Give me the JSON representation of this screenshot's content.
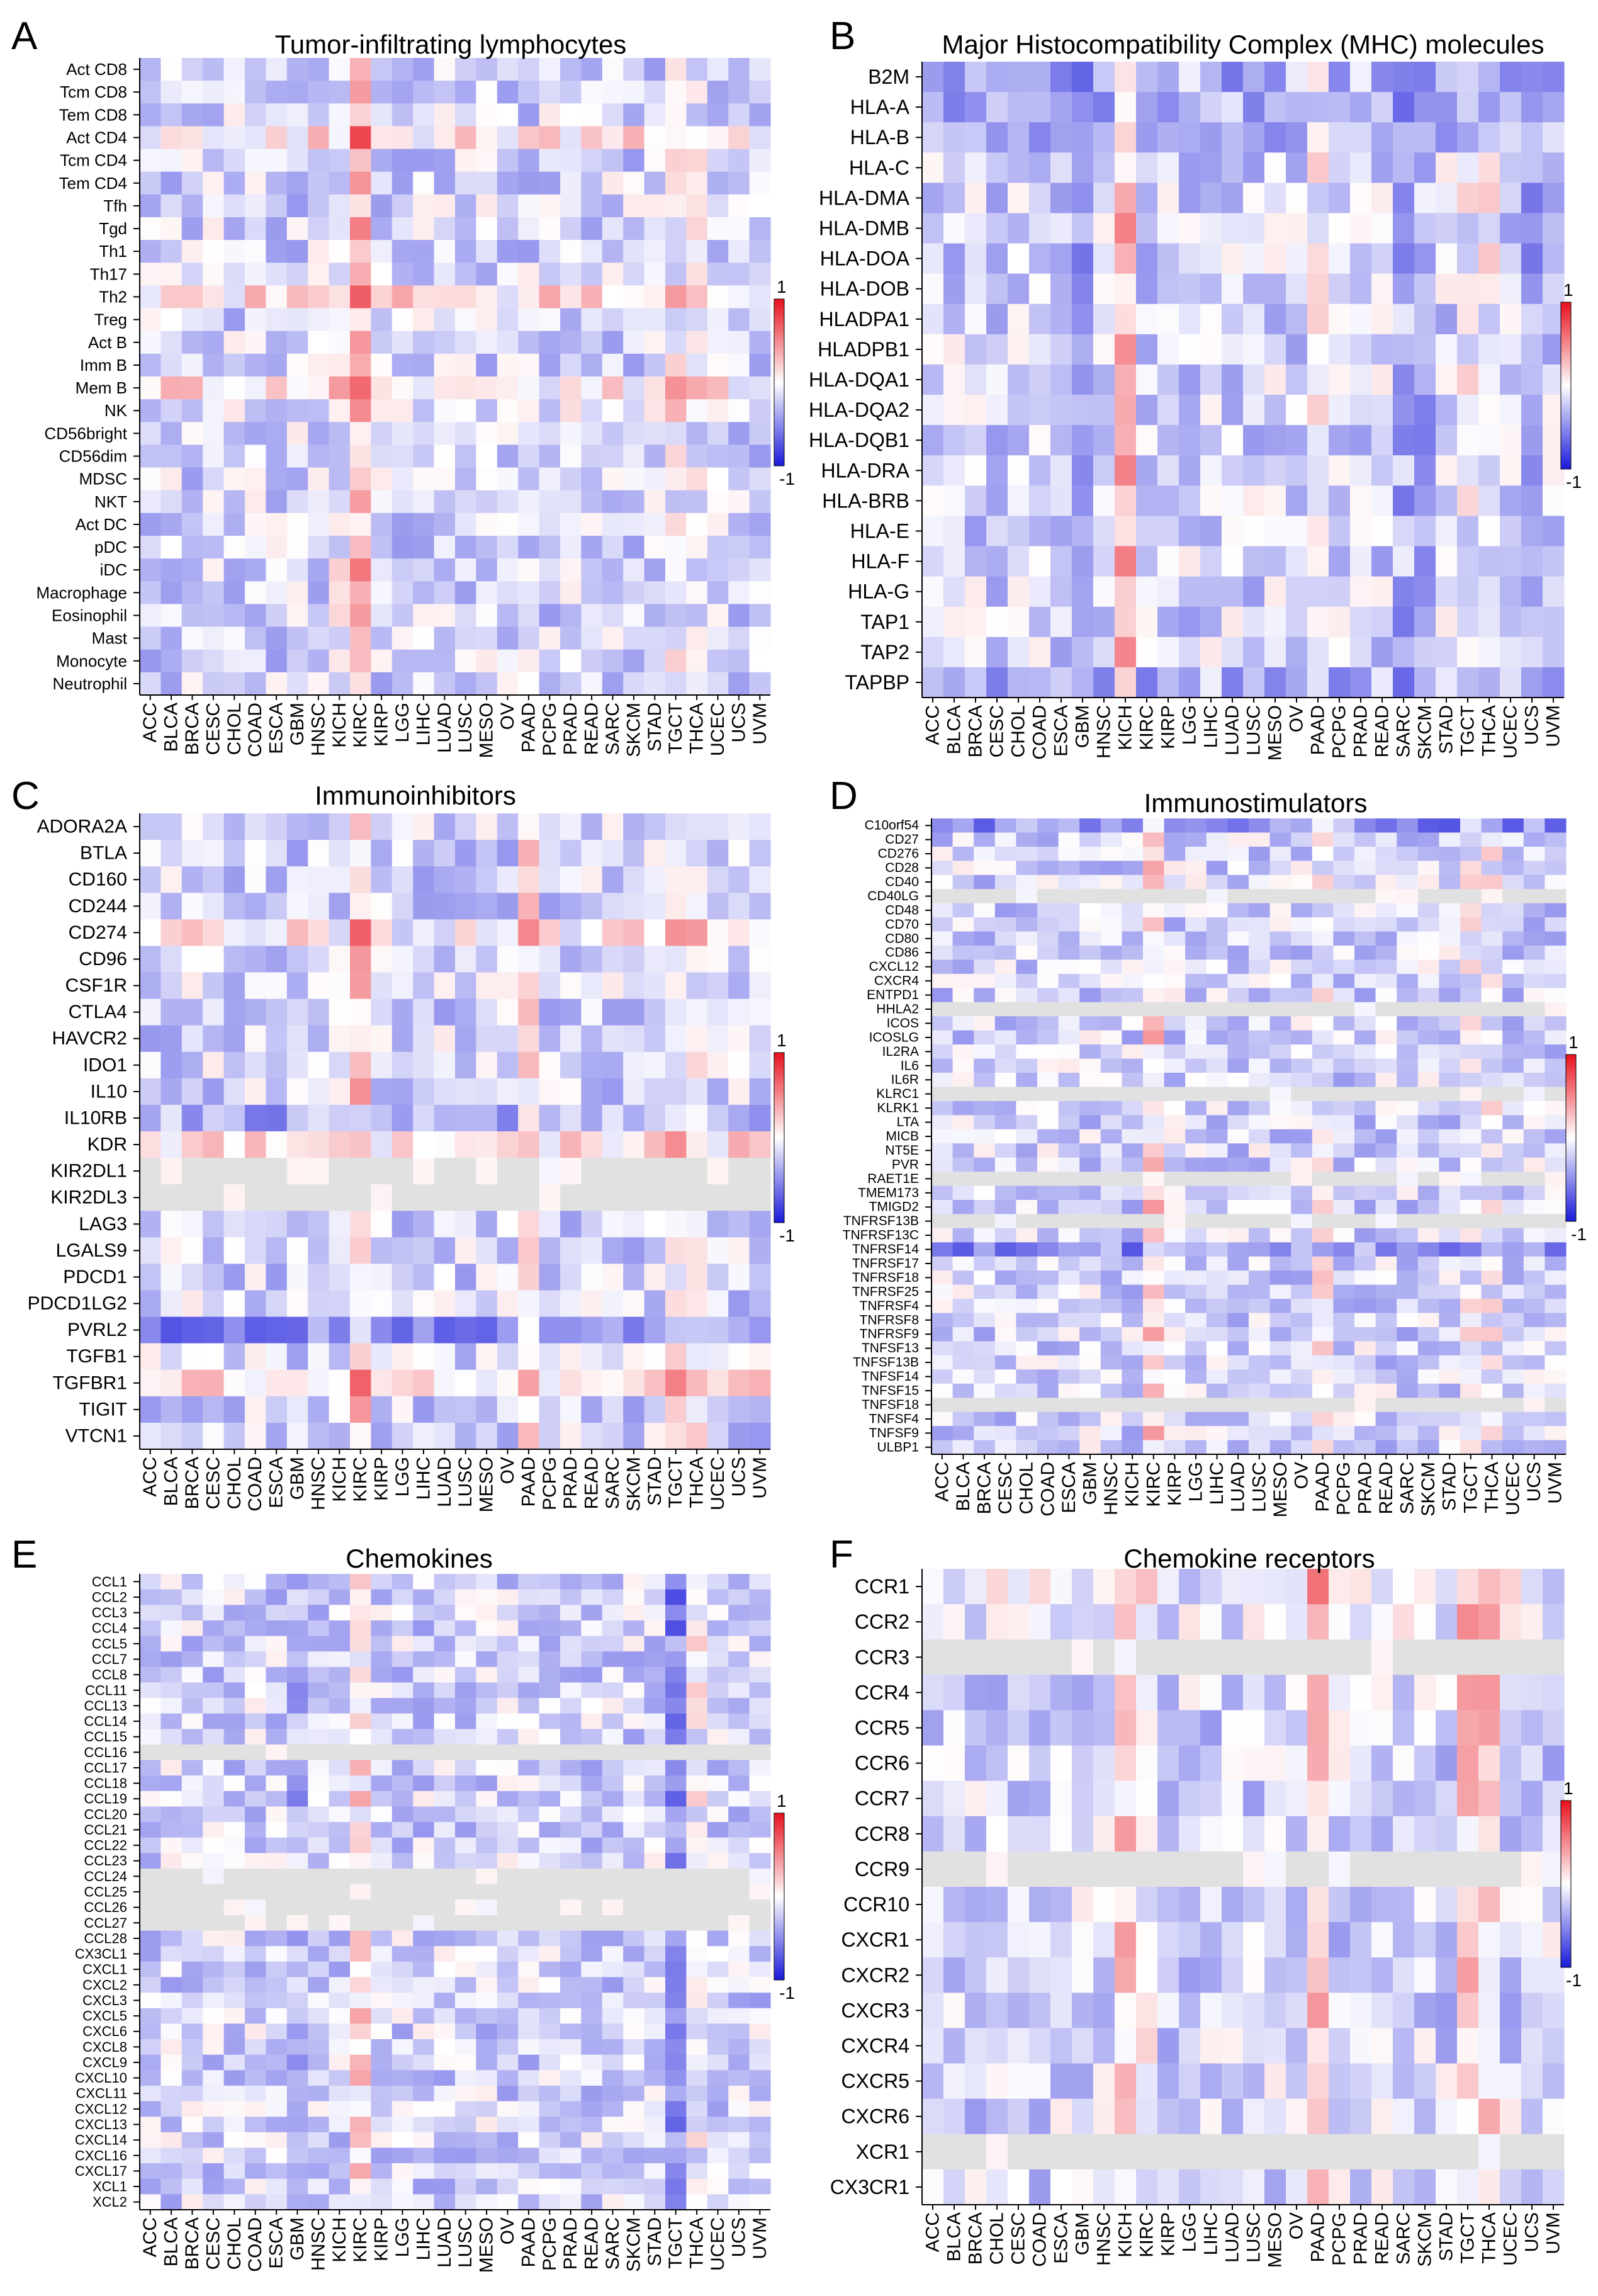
{
  "colors": {
    "positive": "#e8111d",
    "negative": "#1a1adb",
    "neutral": "#ffffff",
    "na": "#e1e1e1",
    "red_label": "#e0231d",
    "blue_label": "#4f80c6"
  },
  "chart_data": [
    {
      "panel": "A",
      "type": "heatmap",
      "title": "Tumor-infiltrating lymphocytes",
      "rows": [
        "Act CD8",
        "Tcm CD8",
        "Tem CD8",
        "Act CD4",
        "Tcm CD4",
        "Tem CD4",
        "Tfh",
        "Tgd",
        "Th1",
        "Th17",
        "Th2",
        "Treg",
        "Act B",
        "Imm B",
        "Mem B",
        "NK",
        "CD56bright",
        "CD56dim",
        "MDSC",
        "NKT",
        "Act DC",
        "pDC",
        "iDC",
        "Macrophage",
        "Eosinophil",
        "Mast",
        "Monocyte",
        "Neutrophil"
      ],
      "row_colors": {
        "Act CD4": "red",
        "Th1": "blue",
        "Th17": "blue",
        "Th2": "red",
        "Mem B": "red"
      },
      "columns": [
        "ACC",
        "BLCA",
        "BRCA",
        "CESC",
        "CHOL",
        "COAD",
        "ESCA",
        "GBM",
        "HNSC",
        "KICH",
        "KIRC",
        "KIRP",
        "LGG",
        "LIHC",
        "LUAD",
        "LUSC",
        "MESO",
        "OV",
        "PAAD",
        "PCPG",
        "PRAD",
        "READ",
        "SARC",
        "SKCM",
        "STAD",
        "TGCT",
        "THCA",
        "UCEC",
        "UCS",
        "UVM"
      ],
      "color_scale": {
        "min": -1,
        "max": 1,
        "min_label": "-1",
        "max_label": "1"
      },
      "hot_columns": {
        "KIRC": 0.5,
        "KICH": 0.12,
        "TGCT": 0.15,
        "THCA": 0.1
      },
      "hot_rows": {
        "Act CD4": 0.25,
        "Th2": 0.3,
        "Mem B": 0.25,
        "NK": 0.1
      },
      "gray_rows": []
    },
    {
      "panel": "B",
      "type": "heatmap",
      "title": "Major Histocompatibility Complex (MHC) molecules",
      "rows": [
        "B2M",
        "HLA-A",
        "HLA-B",
        "HLA-C",
        "HLA-DMA",
        "HLA-DMB",
        "HLA-DOA",
        "HLA-DOB",
        "HLADPA1",
        "HLADPB1",
        "HLA-DQA1",
        "HLA-DQA2",
        "HLA-DQB1",
        "HLA-DRA",
        "HLA-BRB",
        "HLA-E",
        "HLA-F",
        "HLA-G",
        "TAP1",
        "TAP2",
        "TAPBP"
      ],
      "row_colors": {},
      "columns": [
        "ACC",
        "BLCA",
        "BRCA",
        "CESC",
        "CHOL",
        "COAD",
        "ESCA",
        "GBM",
        "HNSC",
        "KICH",
        "KIRC",
        "KIRP",
        "LGG",
        "LIHC",
        "LUAD",
        "LUSC",
        "MESO",
        "OV",
        "PAAD",
        "PCPG",
        "PRAD",
        "READ",
        "SARC",
        "SKCM",
        "STAD",
        "TGCT",
        "THCA",
        "UCEC",
        "UCS",
        "UVM"
      ],
      "color_scale": {
        "min": -1,
        "max": 1,
        "min_label": "-1",
        "max_label": "1"
      },
      "hot_columns": {
        "KICH": 0.45,
        "PAAD": 0.2,
        "TGCT": 0.15,
        "THCA": 0.15,
        "GBM": -0.2,
        "SARC": -0.15,
        "SKCM": -0.15,
        "UCS": -0.15
      },
      "hot_rows": {
        "B2M": -0.15,
        "HLA-A": -0.15,
        "HLA-B": -0.15,
        "TAPBP": -0.15
      },
      "gray_rows": []
    },
    {
      "panel": "C",
      "type": "heatmap",
      "title": "Immunoinhibitors",
      "rows": [
        "ADORA2A",
        "BTLA",
        "CD160",
        "CD244",
        "CD274",
        "CD96",
        "CSF1R",
        "CTLA4",
        "HAVCR2",
        "IDO1",
        "IL10",
        "IL10RB",
        "KDR",
        "KIR2DL1",
        "KIR2DL3",
        "LAG3",
        "LGALS9",
        "PDCD1",
        "PDCD1LG2",
        "PVRL2",
        "TGFB1",
        "TGFBR1",
        "TIGIT",
        "VTCN1"
      ],
      "row_colors": {
        "CD274": "red",
        "IL10RB": "blue",
        "KDR": "red",
        "PVRL2": "blue",
        "TGFBR1": "red"
      },
      "columns": [
        "ACC",
        "BLCA",
        "BRCA",
        "CESC",
        "CHOL",
        "COAD",
        "ESCA",
        "GBM",
        "HNSC",
        "KICH",
        "KIRC",
        "KIRP",
        "LGG",
        "LIHC",
        "LUAD",
        "LUSC",
        "MESO",
        "OV",
        "PAAD",
        "PCPG",
        "PRAD",
        "READ",
        "SARC",
        "SKCM",
        "STAD",
        "TGCT",
        "THCA",
        "UCEC",
        "UCS",
        "UVM"
      ],
      "color_scale": {
        "min": -1,
        "max": 1,
        "min_label": "-1",
        "max_label": "1"
      },
      "hot_columns": {
        "KIRC": 0.4,
        "PAAD": 0.25,
        "TGCT": 0.2,
        "THCA": 0.15
      },
      "hot_rows": {
        "CD274": 0.2,
        "KDR": 0.3,
        "TGFBR1": 0.3,
        "PVRL2": -0.3,
        "IL10RB": -0.2
      },
      "gray_rows": [
        "KIR2DL1",
        "KIR2DL3"
      ]
    },
    {
      "panel": "D",
      "type": "heatmap",
      "title": "Immunostimulators",
      "rows": [
        "C10orf54",
        "CD27",
        "CD276",
        "CD28",
        "CD40",
        "CD40LG",
        "CD48",
        "CD70",
        "CD80",
        "CD86",
        "CXCL12",
        "CXCR4",
        "ENTPD1",
        "HHLA2",
        "ICOS",
        "ICOSLG",
        "IL2RA",
        "IL6",
        "IL6R",
        "KLRC1",
        "KLRK1",
        "LTA",
        "MICB",
        "NT5E",
        "PVR",
        "RAET1E",
        "TMEM173",
        "TMIGD2",
        "TNFRSF13B",
        "TNFRSF13C",
        "TNFRSF14",
        "TNFRSF17",
        "TNFRSF18",
        "TNFRSF25",
        "TNFRSF4",
        "TNFRSF8",
        "TNFRSF9",
        "TNFSF13",
        "TNFSF13B",
        "TNFSF14",
        "TNFSF15",
        "TNFSF18",
        "TNFSF4",
        "TNFSF9",
        "ULBP1"
      ],
      "row_colors": {
        "C10orf54": "blue",
        "TNFRSF14": "blue"
      },
      "columns": [
        "ACC",
        "BLCA",
        "BRCA",
        "CESC",
        "CHOL",
        "COAD",
        "ESCA",
        "GBM",
        "HNSC",
        "KICH",
        "KIRC",
        "KIRP",
        "LGG",
        "LIHC",
        "LUAD",
        "LUSC",
        "MESO",
        "OV",
        "PAAD",
        "PCPG",
        "PRAD",
        "READ",
        "SARC",
        "SKCM",
        "STAD",
        "TGCT",
        "THCA",
        "UCEC",
        "UCS",
        "UVM"
      ],
      "color_scale": {
        "min": -1,
        "max": 1,
        "min_label": "-1",
        "max_label": "1"
      },
      "hot_columns": {
        "KIRC": 0.35,
        "PAAD": 0.2,
        "TGCT": 0.15,
        "THCA": 0.15
      },
      "hot_rows": {
        "C10orf54": -0.3,
        "TNFRSF14": -0.3
      },
      "gray_rows": [
        "CD40LG",
        "HHLA2",
        "KLRC1",
        "RAET1E",
        "TNFRSF13B",
        "TNFSF18"
      ]
    },
    {
      "panel": "E",
      "type": "heatmap",
      "title": "Chemokines",
      "rows": [
        "CCL1",
        "CCL2",
        "CCL3",
        "CCL4",
        "CCL5",
        "CCL7",
        "CCL8",
        "CCL11",
        "CCL13",
        "CCL14",
        "CCL15",
        "CCL16",
        "CCL17",
        "CCL18",
        "CCL19",
        "CCL20",
        "CCL21",
        "CCL22",
        "CCL23",
        "CCL24",
        "CCL25",
        "CCL26",
        "CCL27",
        "CCL28",
        "CX3CL1",
        "CXCL1",
        "CXCL2",
        "CXCL3",
        "CXCL5",
        "CXCL6",
        "CXCL8",
        "CXCL9",
        "CXCL10",
        "CXCL11",
        "CXCL12",
        "CXCL13",
        "CXCL14",
        "CXCL16",
        "CXCL17",
        "XCL1",
        "XCL2"
      ],
      "row_colors": {},
      "columns": [
        "ACC",
        "BLCA",
        "BRCA",
        "CESC",
        "CHOL",
        "COAD",
        "ESCA",
        "GBM",
        "HNSC",
        "KICH",
        "KIRC",
        "KIRP",
        "LGG",
        "LIHC",
        "LUAD",
        "LUSC",
        "MESO",
        "OV",
        "PAAD",
        "PCPG",
        "PRAD",
        "READ",
        "SARC",
        "SKCM",
        "STAD",
        "TGCT",
        "THCA",
        "UCEC",
        "UCS",
        "UVM"
      ],
      "color_scale": {
        "min": -1,
        "max": 1,
        "min_label": "-1",
        "max_label": "1"
      },
      "hot_columns": {
        "KIRC": 0.3,
        "TGCT": -0.35,
        "THCA": 0.15,
        "GBM": -0.15
      },
      "hot_rows": {},
      "gray_rows": [
        "CCL16",
        "CCL24",
        "CCL25",
        "CCL26",
        "CCL27"
      ]
    },
    {
      "panel": "F",
      "type": "heatmap",
      "title": "Chemokine receptors",
      "rows": [
        "CCR1",
        "CCR2",
        "CCR3",
        "CCR4",
        "CCR5",
        "CCR6",
        "CCR7",
        "CCR8",
        "CCR9",
        "CCR10",
        "CXCR1",
        "CXCR2",
        "CXCR3",
        "CXCR4",
        "CXCR5",
        "CXCR6",
        "XCR1",
        "CX3CR1"
      ],
      "row_colors": {},
      "columns": [
        "ACC",
        "BLCA",
        "BRCA",
        "CHOL",
        "CESC",
        "COAD",
        "ESCA",
        "GBM",
        "HNSC",
        "KICH",
        "KIRC",
        "KIRP",
        "LGG",
        "LIHC",
        "LUAD",
        "LUSC",
        "MESO",
        "OV",
        "PAAD",
        "PCPG",
        "PRAD",
        "READ",
        "SARC",
        "SKCM",
        "STAD",
        "TGCT",
        "THCA",
        "UCEC",
        "UCS",
        "UVM"
      ],
      "color_scale": {
        "min": -1,
        "max": 1,
        "min_label": "-1",
        "max_label": "1"
      },
      "hot_columns": {
        "KICH": 0.4,
        "KIRC": 0.2,
        "PAAD": 0.45,
        "TGCT": 0.35,
        "THCA": 0.35
      },
      "hot_rows": {
        "CCR1": 0.1,
        "CCR2": 0.1
      },
      "gray_rows": [
        "CCR3",
        "CCR9",
        "XCR1"
      ]
    }
  ]
}
